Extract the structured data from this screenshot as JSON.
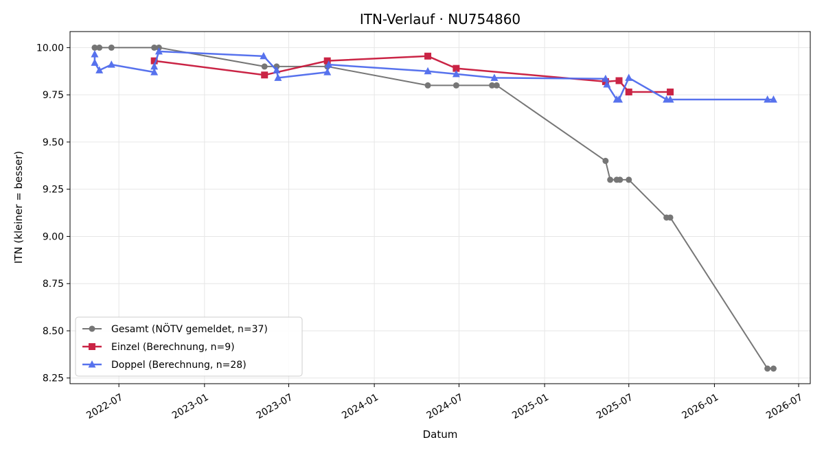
{
  "chart_data": {
    "type": "line",
    "title": "ITN-Verlauf · NU754860",
    "xlabel": "Datum",
    "ylabel": "ITN  (kleiner = besser)",
    "x_type": "date",
    "xlim": [
      "2022-03-18",
      "2026-07-26"
    ],
    "ylim": [
      8.22,
      10.085
    ],
    "grid": true,
    "legend_position": "lower-left",
    "x_ticks": [
      "2022-07-01",
      "2023-01-01",
      "2023-07-01",
      "2024-01-01",
      "2024-07-01",
      "2025-01-01",
      "2025-07-01",
      "2026-01-01",
      "2026-07-01"
    ],
    "x_tick_labels": [
      "2022-07",
      "2023-01",
      "2023-07",
      "2024-01",
      "2024-07",
      "2025-01",
      "2025-07",
      "2026-01",
      "2026-07"
    ],
    "y_ticks": [
      8.25,
      8.5,
      8.75,
      9.0,
      9.25,
      9.5,
      9.75,
      10.0
    ],
    "y_tick_labels": [
      "8.25",
      "8.50",
      "8.75",
      "9.00",
      "9.25",
      "9.50",
      "9.75",
      "10.00"
    ],
    "series": [
      {
        "name": "Gesamt (NÖTV gemeldet, n=37)",
        "color": "#555555",
        "marker": "circle",
        "points": [
          {
            "x": "2022-05-10",
            "y": 10.0
          },
          {
            "x": "2022-05-20",
            "y": 10.0
          },
          {
            "x": "2022-06-15",
            "y": 10.0
          },
          {
            "x": "2022-09-15",
            "y": 10.0
          },
          {
            "x": "2022-09-25",
            "y": 10.0
          },
          {
            "x": "2023-05-10",
            "y": 9.9
          },
          {
            "x": "2023-06-05",
            "y": 9.9
          },
          {
            "x": "2023-09-22",
            "y": 9.9
          },
          {
            "x": "2024-04-25",
            "y": 9.8
          },
          {
            "x": "2024-06-25",
            "y": 9.8
          },
          {
            "x": "2024-09-10",
            "y": 9.8
          },
          {
            "x": "2024-09-20",
            "y": 9.8
          },
          {
            "x": "2025-05-12",
            "y": 9.4
          },
          {
            "x": "2025-05-22",
            "y": 9.3
          },
          {
            "x": "2025-06-05",
            "y": 9.3
          },
          {
            "x": "2025-06-12",
            "y": 9.3
          },
          {
            "x": "2025-07-01",
            "y": 9.3
          },
          {
            "x": "2025-09-20",
            "y": 9.1
          },
          {
            "x": "2025-09-28",
            "y": 9.1
          },
          {
            "x": "2026-04-25",
            "y": 8.3
          },
          {
            "x": "2026-05-08",
            "y": 8.3
          }
        ]
      },
      {
        "name": "Einzel (Berechnung, n=9)",
        "color": "#c8193c",
        "marker": "square",
        "points": [
          {
            "x": "2022-09-15",
            "y": 9.93
          },
          {
            "x": "2023-05-10",
            "y": 9.855
          },
          {
            "x": "2023-09-22",
            "y": 9.93
          },
          {
            "x": "2024-04-25",
            "y": 9.955
          },
          {
            "x": "2024-06-25",
            "y": 9.89
          },
          {
            "x": "2025-05-12",
            "y": 9.82
          },
          {
            "x": "2025-06-10",
            "y": 9.825
          },
          {
            "x": "2025-07-01",
            "y": 9.765
          },
          {
            "x": "2025-09-28",
            "y": 9.765
          }
        ]
      },
      {
        "name": "Doppel (Berechnung, n=28)",
        "color": "#4f6bed",
        "marker": "triangle",
        "points": [
          {
            "x": "2022-05-10",
            "y": 9.965
          },
          {
            "x": "2022-05-10",
            "y": 9.92
          },
          {
            "x": "2022-05-20",
            "y": 9.88
          },
          {
            "x": "2022-06-15",
            "y": 9.91
          },
          {
            "x": "2022-09-15",
            "y": 9.87
          },
          {
            "x": "2022-09-15",
            "y": 9.9
          },
          {
            "x": "2022-09-25",
            "y": 9.98
          },
          {
            "x": "2023-05-08",
            "y": 9.955
          },
          {
            "x": "2023-06-05",
            "y": 9.88
          },
          {
            "x": "2023-06-08",
            "y": 9.84
          },
          {
            "x": "2023-09-22",
            "y": 9.87
          },
          {
            "x": "2023-09-25",
            "y": 9.91
          },
          {
            "x": "2024-04-25",
            "y": 9.875
          },
          {
            "x": "2024-06-25",
            "y": 9.86
          },
          {
            "x": "2024-09-15",
            "y": 9.84
          },
          {
            "x": "2025-05-12",
            "y": 9.835
          },
          {
            "x": "2025-05-15",
            "y": 9.805
          },
          {
            "x": "2025-06-05",
            "y": 9.725
          },
          {
            "x": "2025-06-10",
            "y": 9.725
          },
          {
            "x": "2025-07-01",
            "y": 9.84
          },
          {
            "x": "2025-09-20",
            "y": 9.725
          },
          {
            "x": "2025-09-28",
            "y": 9.725
          },
          {
            "x": "2026-04-25",
            "y": 9.725
          },
          {
            "x": "2026-05-08",
            "y": 9.725
          }
        ]
      }
    ]
  }
}
